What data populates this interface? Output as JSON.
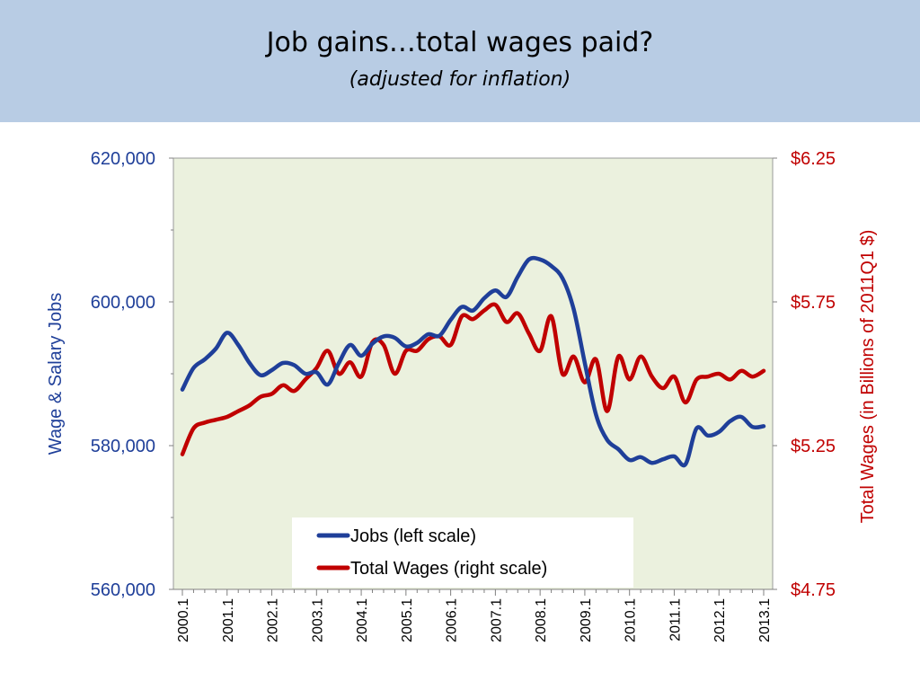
{
  "slide": {
    "title": "Job gains…total wages paid?",
    "subtitle": "(adjusted for inflation)"
  },
  "colors": {
    "header_band": "#b8cce4",
    "plot_background": "#ebf1de",
    "jobs_series": "#1f3f99",
    "wages_series": "#c00000"
  },
  "chart_data": {
    "type": "line",
    "xlabel": "",
    "ylabel_left": "Wage & Salary Jobs",
    "ylabel_right": "Total Wages (in Billions of 2011Q1 $)",
    "ylim_left": [
      560000,
      620000
    ],
    "ylim_right": [
      4.75,
      6.25
    ],
    "yticks_left": [
      "560,000",
      "580,000",
      "600,000",
      "620,000"
    ],
    "yticks_left_values": [
      560000,
      580000,
      600000,
      620000
    ],
    "yticks_right": [
      "$4.75",
      "$5.25",
      "$5.75",
      "$6.25"
    ],
    "yticks_right_values": [
      4.75,
      5.25,
      5.75,
      6.25
    ],
    "xtick_labels": [
      "2000.1",
      "2001.1",
      "2002.1",
      "2003.1",
      "2004.1",
      "2005.1",
      "2006.1",
      "2007.1",
      "2008.1",
      "2009.1",
      "2010.1",
      "2011.1",
      "2012.1",
      "2013.1"
    ],
    "grid": false,
    "legend_position": "bottom-center",
    "series": [
      {
        "name": "Jobs (left scale)",
        "axis": "left",
        "x": [
          2000.0,
          2000.25,
          2000.5,
          2000.75,
          2001.0,
          2001.25,
          2001.5,
          2001.75,
          2002.0,
          2002.25,
          2002.5,
          2002.75,
          2003.0,
          2003.25,
          2003.5,
          2003.75,
          2004.0,
          2004.25,
          2004.5,
          2004.75,
          2005.0,
          2005.25,
          2005.5,
          2005.75,
          2006.0,
          2006.25,
          2006.5,
          2006.75,
          2007.0,
          2007.25,
          2007.5,
          2007.75,
          2008.0,
          2008.25,
          2008.5,
          2008.75,
          2009.0,
          2009.25,
          2009.5,
          2009.75,
          2010.0,
          2010.25,
          2010.5,
          2010.75,
          2011.0,
          2011.25,
          2011.5,
          2011.75,
          2012.0,
          2012.25,
          2012.5,
          2012.75,
          2013.0
        ],
        "values": [
          587800,
          590800,
          592000,
          593500,
          595700,
          594000,
          591500,
          589800,
          590500,
          591500,
          591200,
          590000,
          590200,
          588500,
          591500,
          594000,
          592500,
          594200,
          595200,
          595000,
          593800,
          594300,
          595500,
          595300,
          597500,
          599300,
          598800,
          600500,
          601600,
          600700,
          603500,
          605900,
          605900,
          605000,
          603300,
          599000,
          591500,
          584300,
          580800,
          579500,
          578000,
          578400,
          577600,
          578100,
          578500,
          577400,
          582400,
          581400,
          581900,
          583400,
          584000,
          582600,
          582700
        ]
      },
      {
        "name": "Total Wages (right scale)",
        "axis": "right",
        "x": [
          2000.0,
          2000.25,
          2000.5,
          2000.75,
          2001.0,
          2001.25,
          2001.5,
          2001.75,
          2002.0,
          2002.25,
          2002.5,
          2002.75,
          2003.0,
          2003.25,
          2003.5,
          2003.75,
          2004.0,
          2004.25,
          2004.5,
          2004.75,
          2005.0,
          2005.25,
          2005.5,
          2005.75,
          2006.0,
          2006.25,
          2006.5,
          2006.75,
          2007.0,
          2007.25,
          2007.5,
          2007.75,
          2008.0,
          2008.25,
          2008.5,
          2008.75,
          2009.0,
          2009.25,
          2009.5,
          2009.75,
          2010.0,
          2010.25,
          2010.5,
          2010.75,
          2011.0,
          2011.25,
          2011.5,
          2011.75,
          2012.0,
          2012.25,
          2012.5,
          2012.75,
          2013.0
        ],
        "values": [
          5.22,
          5.31,
          5.33,
          5.34,
          5.35,
          5.37,
          5.39,
          5.42,
          5.43,
          5.46,
          5.44,
          5.48,
          5.52,
          5.58,
          5.5,
          5.54,
          5.49,
          5.61,
          5.6,
          5.5,
          5.58,
          5.58,
          5.62,
          5.63,
          5.6,
          5.7,
          5.69,
          5.72,
          5.74,
          5.68,
          5.71,
          5.64,
          5.58,
          5.7,
          5.5,
          5.56,
          5.47,
          5.55,
          5.37,
          5.56,
          5.48,
          5.56,
          5.49,
          5.45,
          5.49,
          5.4,
          5.48,
          5.49,
          5.5,
          5.48,
          5.51,
          5.49,
          5.51
        ]
      }
    ]
  }
}
